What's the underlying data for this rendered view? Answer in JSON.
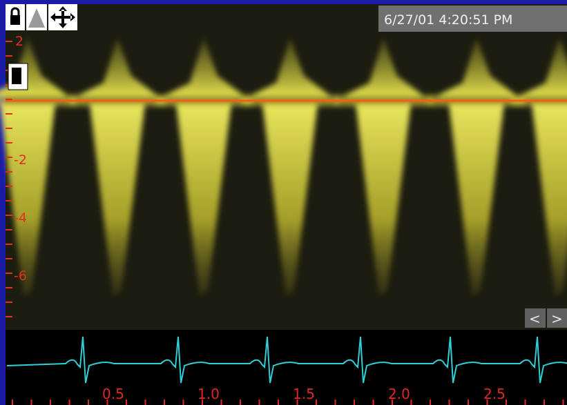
{
  "header": {
    "timestamp": "6/27/01 4:20:51 PM"
  },
  "velocity_scale": {
    "labels": [
      "2",
      "-2",
      "-4",
      "-6"
    ]
  },
  "time_scale": {
    "labels": [
      "0.5",
      "1.0",
      "1.5",
      "2.0",
      "2.5"
    ]
  },
  "nav": {
    "prev": "<",
    "next": ">"
  }
}
